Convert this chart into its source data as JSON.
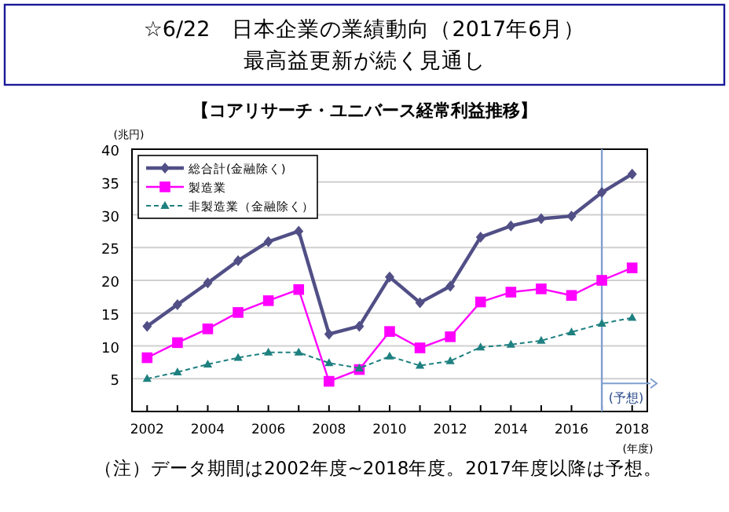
{
  "chart_data": {
    "type": "line",
    "title": "☆6/22　日本企業の業績動向（2017年6月）",
    "subtitle": "最高益更新が続く見通し",
    "ylabel": "(兆円)",
    "xlabel": "(年度)",
    "x": [
      2002,
      2003,
      2004,
      2005,
      2006,
      2007,
      2008,
      2009,
      2010,
      2011,
      2012,
      2013,
      2014,
      2015,
      2016,
      2017,
      2018
    ],
    "series": [
      {
        "name": "総合計(金融除く)",
        "color": "#514f86",
        "marker": "diamond",
        "line_style": "solid",
        "values": [
          13.0,
          16.3,
          19.6,
          23.0,
          25.9,
          27.5,
          11.8,
          13.0,
          20.5,
          16.6,
          19.1,
          26.6,
          28.3,
          29.4,
          29.8,
          33.4,
          36.2
        ]
      },
      {
        "name": "製造業",
        "color": "#ff00ff",
        "marker": "square",
        "line_style": "solid",
        "values": [
          8.2,
          10.5,
          12.6,
          15.1,
          16.9,
          18.6,
          4.6,
          6.4,
          12.2,
          9.7,
          11.4,
          16.7,
          18.2,
          18.7,
          17.7,
          20.0,
          21.9
        ]
      },
      {
        "name": "非製造業（金融除く）",
        "color": "#1f8080",
        "marker": "triangle",
        "line_style": "dashed",
        "values": [
          5.0,
          6.0,
          7.2,
          8.2,
          9.0,
          9.0,
          7.4,
          6.6,
          8.4,
          7.0,
          7.7,
          9.8,
          10.2,
          10.8,
          12.1,
          13.4,
          14.3
        ]
      }
    ],
    "xlim": [
      2001.5,
      2018.5
    ],
    "xticks": [
      2002,
      {
        "value": 2003,
        "label": null
      },
      2004,
      {
        "value": 2005,
        "label": null
      },
      2006,
      {
        "value": 2007,
        "label": null
      },
      2008,
      {
        "value": 2009,
        "label": null
      },
      2010,
      {
        "value": 2011,
        "label": null
      },
      2012,
      {
        "value": 2013,
        "label": null
      },
      2014,
      {
        "value": 2015,
        "label": null
      },
      2016,
      {
        "value": 2017,
        "label": null
      },
      2018
    ],
    "ylim": [
      0,
      40
    ],
    "yticks": [
      5,
      10,
      15,
      20,
      25,
      30,
      35,
      40
    ],
    "grid": "y",
    "legend": "top left",
    "ref_lines": [
      {
        "axis": "x",
        "value": 2017,
        "label": "(予想)",
        "color": "#7f9fcf"
      }
    ],
    "annotations": [
      "【コアリサーチ・ユニバース経常利益推移】",
      "（注）データ期間は2002年度~2018年度。2017年度以降は予想。"
    ]
  }
}
